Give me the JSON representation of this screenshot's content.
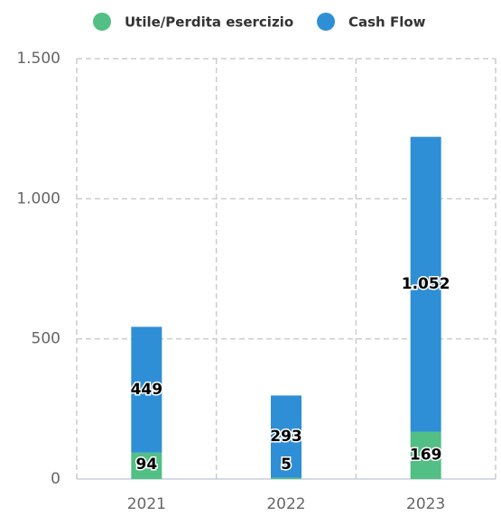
{
  "chart_data": {
    "type": "stacked_bar",
    "categories": [
      "2021",
      "2022",
      "2023"
    ],
    "series": [
      {
        "name": "Utile/Perdita esercizio",
        "color": "#52bf84",
        "values": [
          94,
          5,
          169
        ]
      },
      {
        "name": "Cash Flow",
        "color": "#2f8fd6",
        "values": [
          449,
          293,
          1052
        ],
        "value_labels": [
          "449",
          "293",
          "1.052"
        ]
      }
    ],
    "ylim": [
      0,
      1500
    ],
    "yticks": [
      0,
      500,
      {
        "value": 1000,
        "label": "1.000"
      },
      {
        "value": 1500,
        "label": "1.500"
      }
    ],
    "grid": true,
    "legend": "top"
  }
}
